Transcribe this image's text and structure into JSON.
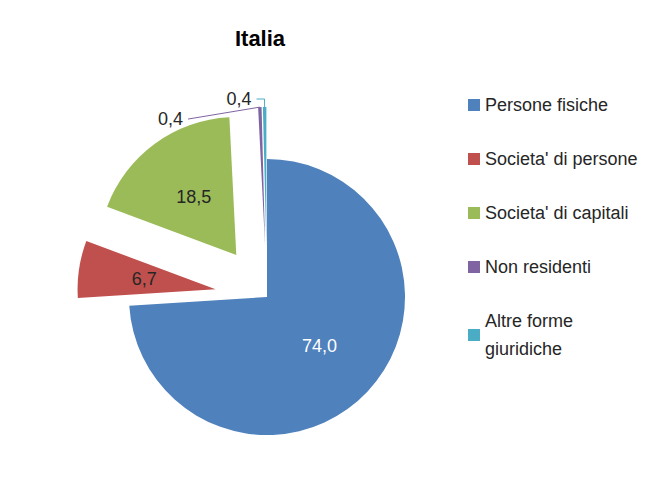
{
  "chart_data": {
    "type": "pie",
    "title": "Italia",
    "categories": [
      "Persone fisiche",
      "Societa' di persone",
      "Societa' di capitali",
      "Non residenti",
      "Altre forme giuridiche"
    ],
    "values": [
      74.0,
      6.7,
      18.5,
      0.4,
      0.4
    ],
    "value_labels": [
      "74,0",
      "6,7",
      "18,5",
      "0,4",
      "0,4"
    ],
    "colors": [
      "#4f81bd",
      "#c0504d",
      "#9bbb59",
      "#8064a2",
      "#4bacc6"
    ],
    "legend": "right",
    "data_labels": true
  }
}
